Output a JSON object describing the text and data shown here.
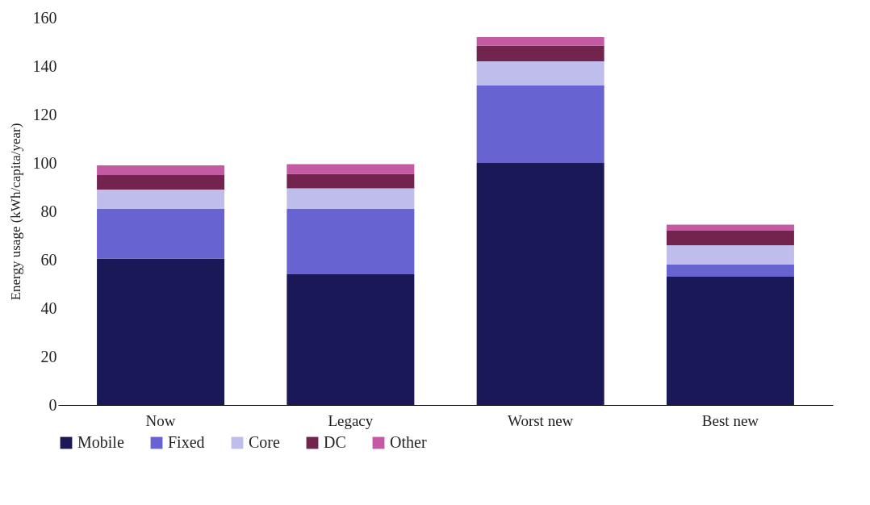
{
  "chart_data": {
    "type": "bar",
    "stacked": true,
    "ylabel": "Energy usage (kWh/capita/year)",
    "categories": [
      "Now",
      "Legacy",
      "Worst new",
      "Best new"
    ],
    "series": [
      {
        "name": "Mobile",
        "color": "#1b1858",
        "values": [
          60.5,
          54,
          100,
          53
        ]
      },
      {
        "name": "Fixed",
        "color": "#6763d1",
        "values": [
          20.5,
          27,
          32,
          5
        ]
      },
      {
        "name": "Core",
        "color": "#bfbdec",
        "values": [
          8,
          8.5,
          10,
          8
        ]
      },
      {
        "name": "DC",
        "color": "#72244f",
        "values": [
          6,
          6,
          6.5,
          6
        ]
      },
      {
        "name": "Other",
        "color": "#c45aa3",
        "values": [
          4,
          4,
          3.5,
          2.5
        ]
      }
    ],
    "ylim": [
      0,
      160
    ],
    "yticks": [
      0,
      20,
      40,
      60,
      80,
      100,
      120,
      140,
      160
    ],
    "grid": false,
    "legend": "bottom"
  }
}
